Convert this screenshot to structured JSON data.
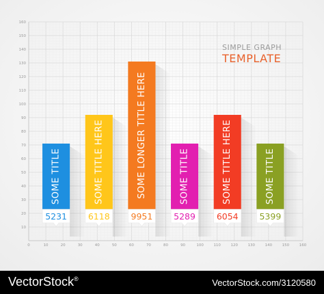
{
  "chart_data": {
    "type": "bar",
    "title": "SIMPLE GRAPH",
    "subtitle": "TEMPLATE",
    "x_ticks": [
      0,
      10,
      20,
      30,
      40,
      50,
      60,
      70,
      80,
      90,
      100,
      110,
      120,
      130,
      140,
      150,
      160
    ],
    "y_ticks": [
      10,
      20,
      30,
      40,
      50,
      60,
      70,
      80,
      90,
      100,
      110,
      120,
      130,
      140,
      150,
      160
    ],
    "xlim": [
      0,
      160
    ],
    "ylim": [
      0,
      160
    ],
    "grid": true,
    "bars": [
      {
        "label": "SOME TITLE",
        "value": 5231,
        "height": 71,
        "x_start": 8,
        "x_end": 24,
        "color": "#1e8fe0"
      },
      {
        "label": "SOME TITLE HERE",
        "value": 6118,
        "height": 92,
        "x_start": 33,
        "x_end": 49,
        "color": "#ffc61a"
      },
      {
        "label": "SOME LONGER TITLE HERE",
        "value": 9951,
        "height": 131,
        "x_start": 58,
        "x_end": 74,
        "color": "#f47a20"
      },
      {
        "label": "SOME TITLE",
        "value": 5289,
        "height": 71,
        "x_start": 83,
        "x_end": 99,
        "color": "#e21fb0"
      },
      {
        "label": "SOME TITLE HERE",
        "value": 6054,
        "height": 92,
        "x_start": 108,
        "x_end": 124,
        "color": "#f23c24"
      },
      {
        "label": "SOME TITLE",
        "value": 5399,
        "height": 71,
        "x_start": 133,
        "x_end": 149,
        "color": "#8aa023"
      }
    ]
  },
  "footer": {
    "brand": "VectorStock",
    "registered": "®",
    "stock_id": "VectorStock.com/3120580"
  }
}
